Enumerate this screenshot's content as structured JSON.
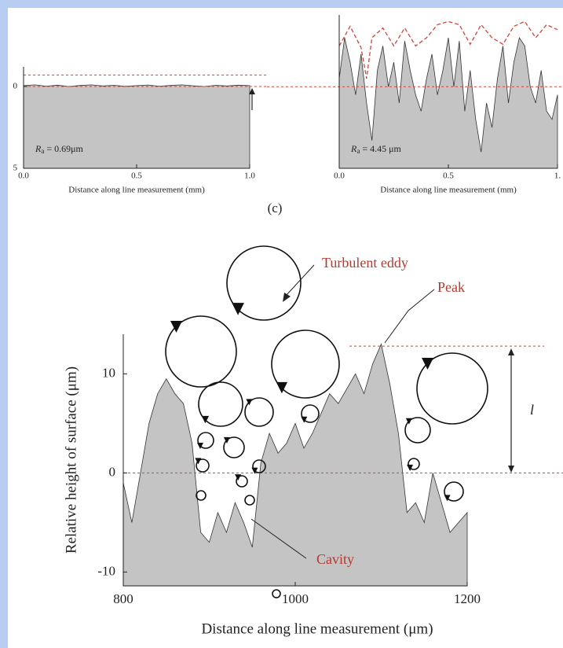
{
  "panel_label": "(c)",
  "chart_data": [
    {
      "type": "area",
      "color": "#c4c4c4",
      "line_color": "#333333",
      "ref_color": "#d0463a",
      "x_label": "Distance along line measurement (mm)",
      "xlim": [
        0,
        1
      ],
      "xticks": [
        {
          "value": 0,
          "label": "0.0"
        },
        {
          "value": 0.5,
          "label": "0.5"
        },
        {
          "value": 1,
          "label": "1.0"
        }
      ],
      "ylim": [
        -5,
        1.2
      ],
      "yticks": [
        0,
        {
          "value": -5,
          "label": "5"
        }
      ],
      "x": [
        0,
        0.05,
        0.1,
        0.15,
        0.2,
        0.25,
        0.3,
        0.35,
        0.4,
        0.45,
        0.5,
        0.55,
        0.6,
        0.65,
        0.7,
        0.75,
        0.8,
        0.85,
        0.9,
        0.95,
        1
      ],
      "values": [
        0.05,
        0.1,
        0.02,
        0.08,
        0.0,
        0.06,
        0.1,
        0.03,
        0.07,
        0.01,
        0.05,
        0.09,
        0.02,
        0.06,
        0.1,
        0.04,
        0.0,
        0.07,
        0.03,
        0.08,
        0.05
      ],
      "ref_lines": [
        0.7,
        0
      ],
      "ra": {
        "symbol": "R",
        "subscript": "a",
        "text": " = 0.69μm"
      }
    },
    {
      "type": "area",
      "color": "#c4c4c4",
      "line_color": "#333333",
      "ref_color": "#d0463a",
      "x_label": "Distance along line measurement (mm)",
      "xlim": [
        0,
        1
      ],
      "xticks": [
        {
          "value": 0,
          "label": "0.0"
        },
        {
          "value": 0.5,
          "label": "0.5"
        },
        {
          "value": 1,
          "label": "1."
        }
      ],
      "ylim": [
        -5,
        4.4
      ],
      "x": [
        0,
        0.025,
        0.05,
        0.075,
        0.1,
        0.125,
        0.15,
        0.175,
        0.2,
        0.225,
        0.25,
        0.275,
        0.3,
        0.325,
        0.35,
        0.375,
        0.4,
        0.425,
        0.45,
        0.475,
        0.5,
        0.525,
        0.55,
        0.575,
        0.6,
        0.625,
        0.65,
        0.675,
        0.7,
        0.725,
        0.75,
        0.775,
        0.8,
        0.825,
        0.85,
        0.875,
        0.9,
        0.925,
        0.95,
        0.975,
        1
      ],
      "values": [
        0.5,
        3,
        1.5,
        -0.5,
        2,
        -1,
        -3.3,
        1,
        2.5,
        0,
        1.5,
        -1,
        2.8,
        1,
        -0.5,
        -1.5,
        0.5,
        2,
        -0.5,
        1,
        3,
        0,
        2.8,
        -1.5,
        1,
        -2,
        -4,
        -1,
        -2.5,
        0.5,
        2.5,
        -1,
        1.5,
        3,
        2.5,
        0,
        -1,
        1,
        -1.5,
        -2,
        -0.5
      ],
      "envelope_x": [
        0,
        0.05,
        0.1,
        0.125,
        0.15,
        0.2,
        0.25,
        0.3,
        0.35,
        0.4,
        0.45,
        0.5,
        0.55,
        0.6,
        0.65,
        0.7,
        0.75,
        0.8,
        0.85,
        0.9,
        0.95,
        1
      ],
      "envelope": [
        2.5,
        3.7,
        2.4,
        0.5,
        3,
        3.6,
        2.5,
        3.6,
        2.5,
        3,
        3.8,
        4,
        3.8,
        2.6,
        3.8,
        3,
        2.6,
        3.7,
        4,
        3,
        3.8,
        3.5
      ],
      "ref_lines": [
        0
      ],
      "ra": {
        "symbol": "R",
        "subscript": "a",
        "text": " = 4.45 μm"
      }
    },
    {
      "type": "area",
      "color": "#c4c4c4",
      "line_color": "#333333",
      "ref_color": "#d0463a",
      "x_label": "Distance along line measurement (μm)",
      "y_label": "Relative height of surface (μm)",
      "xlim": [
        800,
        1200
      ],
      "xticks": [
        800,
        1000,
        1200
      ],
      "ylim": [
        -11.4,
        14
      ],
      "yticks": [
        -10,
        0,
        10
      ],
      "x": [
        800,
        810,
        820,
        830,
        840,
        850,
        860,
        870,
        880,
        890,
        900,
        910,
        920,
        930,
        940,
        950,
        960,
        970,
        980,
        990,
        1000,
        1010,
        1020,
        1030,
        1040,
        1050,
        1060,
        1070,
        1080,
        1090,
        1100,
        1110,
        1120,
        1130,
        1140,
        1150,
        1160,
        1170,
        1180,
        1190,
        1200
      ],
      "values": [
        -1,
        -5,
        0,
        5,
        8,
        9.5,
        8,
        7,
        3,
        -6,
        -7,
        -4,
        -6,
        -3,
        -5,
        -7.5,
        1,
        4,
        2,
        3,
        5,
        2.5,
        4,
        6,
        8,
        7,
        8.5,
        10,
        8,
        11,
        13,
        9,
        4,
        -4,
        -3,
        -5,
        0,
        -3,
        -6,
        -5,
        -4
      ],
      "ref_lines": [
        0,
        12.8
      ],
      "annotations": [
        "Turbulent eddy",
        "Peak",
        "Cavity",
        "l"
      ]
    }
  ]
}
